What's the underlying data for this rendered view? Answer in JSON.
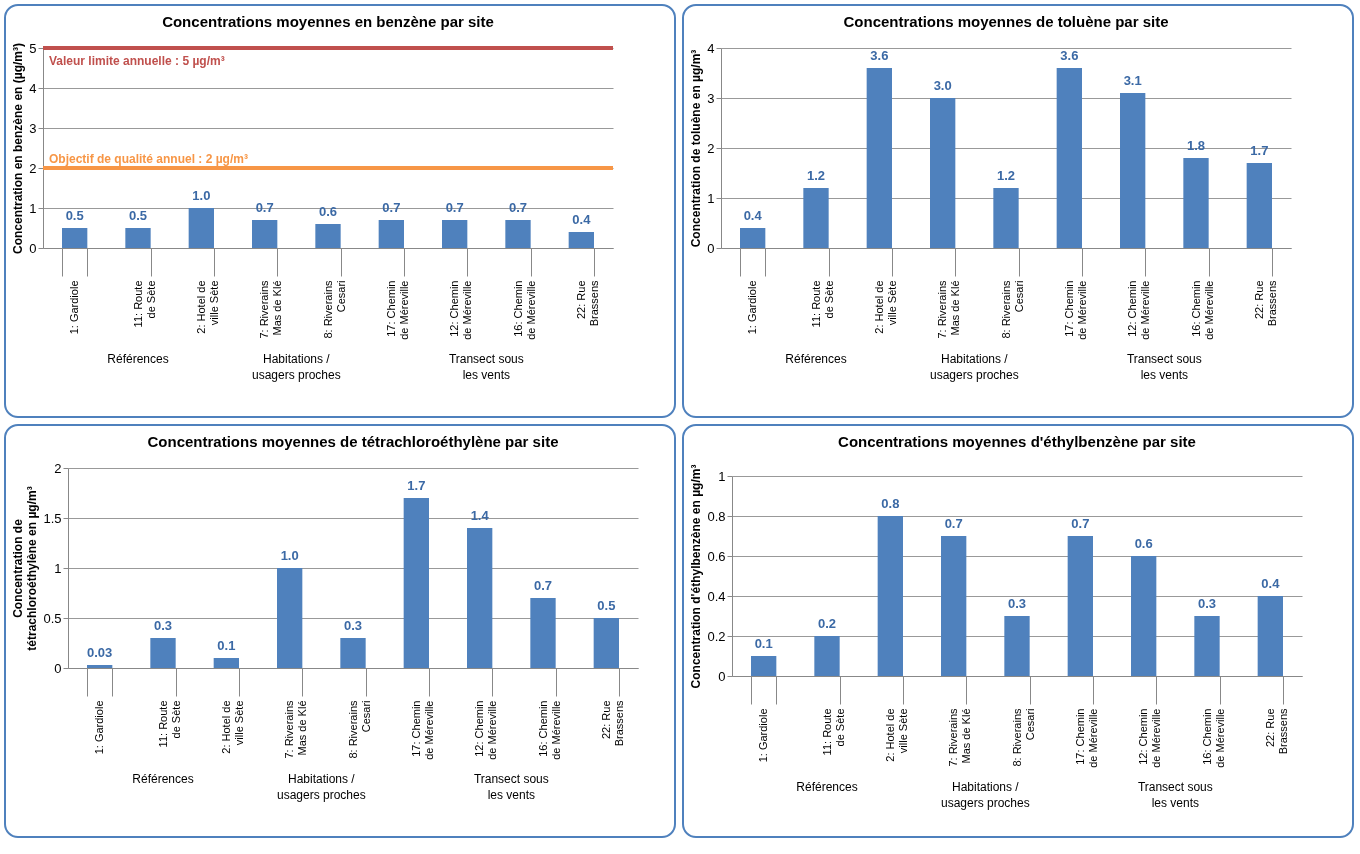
{
  "chart_data": [
    {
      "type": "bar",
      "title": "Concentrations moyennes en benzène par site",
      "ylabel": "Concentration en benzène en (µg/m³)",
      "categories": [
        "1: Gardiole",
        "11: Route de Sète",
        "2: Hotel de ville Sète",
        "7: Riverains Mas de Klé",
        "8: Riverains Cesari",
        "17: Chemin de Méreville",
        "12: Chemin de Méreville",
        "16: Chemin de Méreville",
        "22: Rue Brassens"
      ],
      "values": [
        0.5,
        0.5,
        1.0,
        0.7,
        0.6,
        0.7,
        0.7,
        0.7,
        0.4
      ],
      "value_labels": [
        "0.5",
        "0.5",
        "1.0",
        "0.7",
        "0.6",
        "0.7",
        "0.7",
        "0.7",
        "0.4"
      ],
      "color": "#4f81bd",
      "ylim": [
        0,
        5
      ],
      "yticks": [
        0,
        1,
        2,
        3,
        4,
        5
      ],
      "grid": "y",
      "annotations": [
        "Références",
        "Habitations / usagers proches",
        "Transect sous les vents"
      ],
      "ref_lines": [
        {
          "axis": "y",
          "value": 5,
          "label": "Valeur limite annuelle : 5 µg/m³",
          "color": "#c0504d"
        },
        {
          "axis": "y",
          "value": 2,
          "label": "Objectif de qualité annuel : 2 µg/m³",
          "color": "#f79646"
        }
      ]
    },
    {
      "type": "bar",
      "title": "Concentrations moyennes de toluène par site",
      "ylabel": "Concentration de toluène en µg/m³",
      "categories": [
        "1: Gardiole",
        "11: Route de Sète",
        "2: Hotel de ville Sète",
        "7: Riverains Mas de Klé",
        "8: Riverains Cesari",
        "17: Chemin de Méreville",
        "12: Chemin de Méreville",
        "16: Chemin de Méreville",
        "22: Rue Brassens"
      ],
      "values": [
        0.4,
        1.2,
        3.6,
        3.0,
        1.2,
        3.6,
        3.1,
        1.8,
        1.7
      ],
      "value_labels": [
        "0.4",
        "1.2",
        "3.6",
        "3.0",
        "1.2",
        "3.6",
        "3.1",
        "1.8",
        "1.7"
      ],
      "color": "#4f81bd",
      "ylim": [
        0,
        4
      ],
      "yticks": [
        0,
        1,
        2,
        3,
        4
      ],
      "grid": "y",
      "annotations": [
        "Références",
        "Habitations / usagers proches",
        "Transect sous les vents"
      ]
    },
    {
      "type": "bar",
      "title": "Concentrations moyennes de tétrachloroéthylène par site",
      "ylabel": "Concentration de tétrachloroéthylène  en µg/m³",
      "categories": [
        "1: Gardiole",
        "11: Route de Sète",
        "2: Hotel de ville Sète",
        "7: Riverains Mas de Klé",
        "8: Riverains Cesari",
        "17: Chemin de Méreville",
        "12: Chemin de Méreville",
        "16: Chemin de Méreville",
        "22: Rue Brassens"
      ],
      "values": [
        0.03,
        0.3,
        0.1,
        1.0,
        0.3,
        1.7,
        1.4,
        0.7,
        0.5
      ],
      "value_labels": [
        "0.03",
        "0.3",
        "0.1",
        "1.0",
        "0.3",
        "1.7",
        "1.4",
        "0.7",
        "0.5"
      ],
      "color": "#4f81bd",
      "ylim": [
        0,
        2
      ],
      "yticks": [
        0,
        0.5,
        1,
        1.5,
        2
      ],
      "grid": "y",
      "annotations": [
        "Références",
        "Habitations / usagers proches",
        "Transect sous les vents"
      ]
    },
    {
      "type": "bar",
      "title": "Concentrations moyennes d'éthylbenzène par site",
      "ylabel": "Concentration d'éthylbenzène  en µg/m³",
      "categories": [
        "1: Gardiole",
        "11: Route de Sète",
        "2: Hotel de ville Sète",
        "7: Riverains Mas de Klé",
        "8: Riverains Cesari",
        "17: Chemin de Méreville",
        "12: Chemin de Méreville",
        "16: Chemin de Méreville",
        "22: Rue Brassens"
      ],
      "values": [
        0.1,
        0.2,
        0.8,
        0.7,
        0.3,
        0.7,
        0.6,
        0.3,
        0.4
      ],
      "value_labels": [
        "0.1",
        "0.2",
        "0.8",
        "0.7",
        "0.3",
        "0.7",
        "0.6",
        "0.3",
        "0.4"
      ],
      "color": "#4f81bd",
      "ylim": [
        0,
        1
      ],
      "yticks": [
        0,
        0.2,
        0.4,
        0.6,
        0.8,
        1
      ],
      "grid": "y",
      "annotations": [
        "Références",
        "Habitations / usagers proches",
        "Transect sous les vents"
      ]
    }
  ]
}
